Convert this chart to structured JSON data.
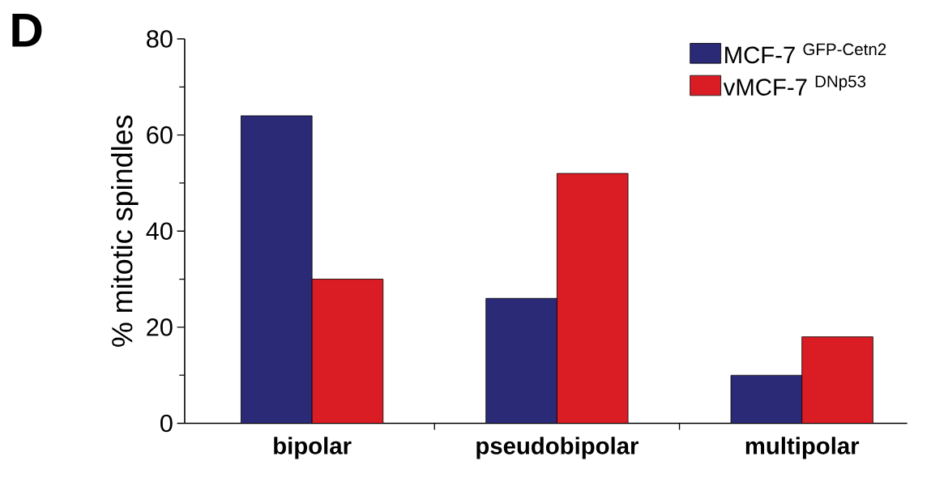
{
  "chart_data": {
    "type": "bar",
    "annotations": [
      "D"
    ],
    "ylabel": "% mitotic spindles",
    "categories": [
      "bipolar",
      "pseudobipolar",
      "multipolar"
    ],
    "series": [
      {
        "name": "MCF-7 $^{GFP-Cetn2}$",
        "color": "#2b2a77",
        "values": [
          64,
          26,
          10
        ]
      },
      {
        "name": "vMCF-7 $^{DNp53}$",
        "color": "#da1c24",
        "values": [
          30,
          52,
          18
        ]
      }
    ],
    "ylim": [
      0,
      80
    ],
    "yticks": [
      0,
      20,
      40,
      60,
      80
    ],
    "legend": "top right",
    "grid": false
  }
}
